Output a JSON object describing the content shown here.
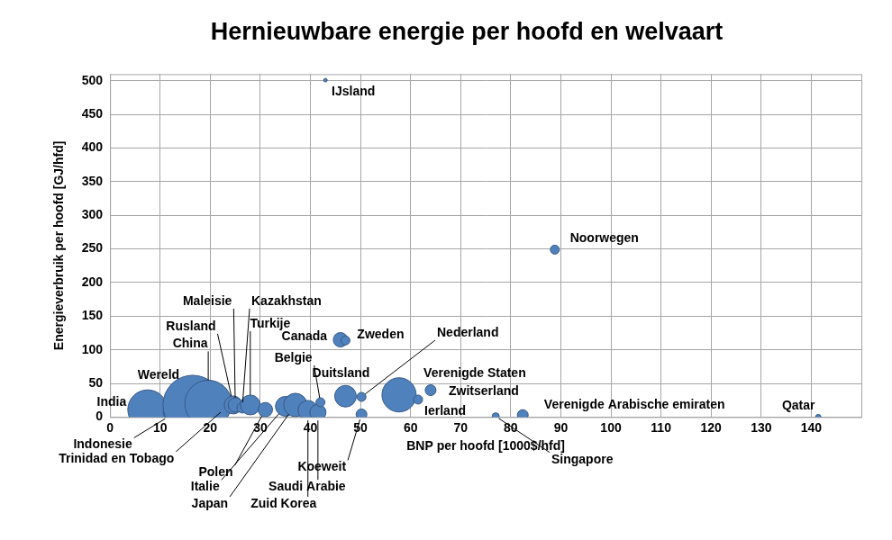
{
  "chart_data": {
    "type": "bubble",
    "title": "Hernieuwbare energie per hoofd en welvaart",
    "xlabel": "BNP per hoofd [1000$/hfd]",
    "ylabel": "Energieverbruik per hoofd [GJ/hfd]",
    "xlim": [
      0,
      150
    ],
    "xticks": [
      0,
      10,
      20,
      30,
      40,
      50,
      60,
      70,
      80,
      90,
      100,
      110,
      120,
      130,
      140
    ],
    "ylim": [
      0,
      510
    ],
    "yticks": [
      0,
      50,
      100,
      150,
      200,
      250,
      300,
      350,
      400,
      450,
      500
    ],
    "grid": true,
    "color": "#4f81bd",
    "point_labels": [
      "India",
      "Indonesie",
      "Trinidad en Tobago",
      "Wereld",
      "China",
      "Rusland",
      "Maleisie",
      "Kazakhstan",
      "Turkije",
      "Polen",
      "Italie",
      "Japan",
      "Zuid Korea",
      "Saudi Arabie",
      "Belgie",
      "Canada",
      "Zweden",
      "IJsland",
      "Noorwegen",
      "Duitsland",
      "Nederland",
      "Koeweit",
      "Verenigde Staten",
      "Zwitserland",
      "Ierland",
      "Singapore",
      "Verenigde Arabische emiraten",
      "Qatar"
    ],
    "x": [
      7.5,
      13.3,
      22.5,
      16.5,
      19.6,
      24.6,
      25,
      26.4,
      28,
      31,
      35,
      37,
      39.5,
      41.5,
      42,
      46,
      47,
      43,
      88.8,
      47,
      50.2,
      50.2,
      57.7,
      64,
      61.5,
      77,
      82.4,
      141.4
    ],
    "values": [
      11,
      8,
      10,
      18,
      20,
      18,
      18,
      14,
      18,
      11,
      16,
      18,
      10,
      7,
      22,
      115,
      114,
      501,
      249,
      31,
      30,
      4,
      33,
      40,
      26,
      1,
      3,
      0
    ],
    "sizes": [
      484,
      225,
      9,
      1089,
      676,
      100,
      64,
      36,
      121,
      64,
      121,
      169,
      121,
      81,
      25,
      64,
      25,
      4,
      25,
      144,
      25,
      36,
      361,
      36,
      25,
      16,
      36,
      9
    ]
  }
}
